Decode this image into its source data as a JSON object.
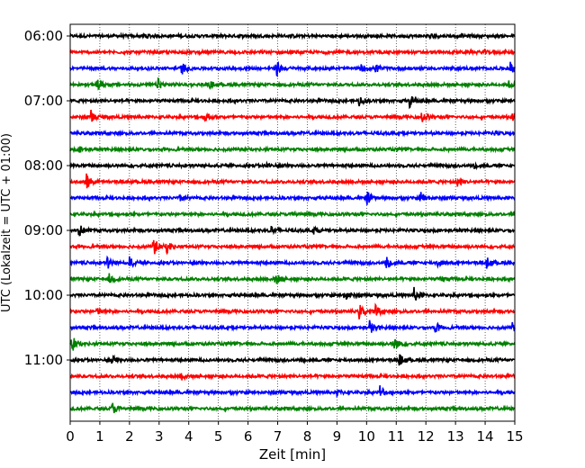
{
  "chart_data": {
    "type": "line",
    "subtype": "helicorder-seismogram",
    "title": "",
    "xlabel": "Zeit  [min]",
    "ylabel": "UTC (Lokalzeit = UTC + 01:00)",
    "xlim": [
      0,
      15
    ],
    "x_ticks": [
      "0",
      "1",
      "2",
      "3",
      "4",
      "5",
      "6",
      "7",
      "8",
      "9",
      "10",
      "11",
      "12",
      "13",
      "14",
      "15"
    ],
    "y_tick_labels": [
      "06:00",
      "07:00",
      "08:00",
      "09:00",
      "10:00",
      "11:00"
    ],
    "grid": "vertical-dotted",
    "line_interval_minutes": 15,
    "color_cycle": [
      "#000000",
      "#ff0000",
      "#0000ff",
      "#008000"
    ],
    "traces": [
      {
        "start": "06:00",
        "color": "#000000",
        "events": [
          {
            "min": 2.5,
            "amp": 0.25
          },
          {
            "min": 12.1,
            "amp": 0.2
          }
        ]
      },
      {
        "start": "06:15",
        "color": "#ff0000",
        "events": [
          {
            "min": 13.9,
            "amp": 0.2
          }
        ]
      },
      {
        "start": "06:30",
        "color": "#0000ff",
        "events": [
          {
            "min": 3.75,
            "amp": 0.5
          },
          {
            "min": 6.95,
            "amp": 0.7
          },
          {
            "min": 9.8,
            "amp": 0.3
          },
          {
            "min": 10.3,
            "amp": 0.35
          },
          {
            "min": 14.85,
            "amp": 0.45
          }
        ]
      },
      {
        "start": "06:45",
        "color": "#008000",
        "events": [
          {
            "min": 0.9,
            "amp": 0.55
          },
          {
            "min": 2.95,
            "amp": 0.5
          },
          {
            "min": 4.7,
            "amp": 0.3
          },
          {
            "min": 14.8,
            "amp": 0.25
          }
        ]
      },
      {
        "start": "07:00",
        "color": "#000000",
        "events": [
          {
            "min": 9.75,
            "amp": 0.45
          },
          {
            "min": 11.45,
            "amp": 0.5
          }
        ]
      },
      {
        "start": "07:15",
        "color": "#ff0000",
        "events": [
          {
            "min": 0.7,
            "amp": 0.5
          },
          {
            "min": 4.55,
            "amp": 0.5
          },
          {
            "min": 11.85,
            "amp": 0.55
          },
          {
            "min": 14.9,
            "amp": 0.4
          }
        ]
      },
      {
        "start": "07:30",
        "color": "#0000ff",
        "events": [
          {
            "min": 14.3,
            "amp": 0.15
          }
        ]
      },
      {
        "start": "07:45",
        "color": "#008000",
        "events": [
          {
            "min": 0.3,
            "amp": 0.2
          }
        ]
      },
      {
        "start": "08:00",
        "color": "#000000",
        "events": [
          {
            "min": 6.6,
            "amp": 0.25
          },
          {
            "min": 13.6,
            "amp": 0.2
          }
        ]
      },
      {
        "start": "08:15",
        "color": "#ff0000",
        "events": [
          {
            "min": 0.55,
            "amp": 0.65
          },
          {
            "min": 13.05,
            "amp": 0.35
          }
        ]
      },
      {
        "start": "08:30",
        "color": "#0000ff",
        "events": [
          {
            "min": 3.7,
            "amp": 0.3
          },
          {
            "min": 10.0,
            "amp": 0.55
          },
          {
            "min": 11.8,
            "amp": 0.65
          }
        ]
      },
      {
        "start": "08:45",
        "color": "#008000",
        "events": [
          {
            "min": 7.5,
            "amp": 0.25
          }
        ]
      },
      {
        "start": "09:00",
        "color": "#000000",
        "events": [
          {
            "min": 0.25,
            "amp": 0.75
          },
          {
            "min": 6.75,
            "amp": 0.45
          },
          {
            "min": 8.2,
            "amp": 0.35
          }
        ]
      },
      {
        "start": "09:15",
        "color": "#ff0000",
        "events": [
          {
            "min": 2.8,
            "amp": 0.85
          },
          {
            "min": 3.25,
            "amp": 0.5
          }
        ]
      },
      {
        "start": "09:30",
        "color": "#0000ff",
        "events": [
          {
            "min": 1.25,
            "amp": 0.55
          },
          {
            "min": 2.0,
            "amp": 0.45
          },
          {
            "min": 10.65,
            "amp": 0.6
          },
          {
            "min": 12.4,
            "amp": 0.3
          },
          {
            "min": 14.05,
            "amp": 0.45
          }
        ]
      },
      {
        "start": "09:45",
        "color": "#008000",
        "events": [
          {
            "min": 1.3,
            "amp": 0.45
          },
          {
            "min": 6.9,
            "amp": 0.6
          },
          {
            "min": 12.5,
            "amp": 0.25
          }
        ]
      },
      {
        "start": "10:00",
        "color": "#000000",
        "events": [
          {
            "min": 9.25,
            "amp": 0.5
          },
          {
            "min": 11.6,
            "amp": 0.6
          }
        ]
      },
      {
        "start": "10:15",
        "color": "#ff0000",
        "events": [
          {
            "min": 0.9,
            "amp": 0.3
          },
          {
            "min": 9.75,
            "amp": 0.6
          },
          {
            "min": 10.3,
            "amp": 0.55
          }
        ]
      },
      {
        "start": "10:30",
        "color": "#0000ff",
        "events": [
          {
            "min": 10.1,
            "amp": 0.6
          },
          {
            "min": 12.3,
            "amp": 0.45
          },
          {
            "min": 14.9,
            "amp": 0.4
          }
        ]
      },
      {
        "start": "10:45",
        "color": "#008000",
        "events": [
          {
            "min": 0.05,
            "amp": 0.75
          },
          {
            "min": 10.9,
            "amp": 0.75
          }
        ]
      },
      {
        "start": "11:00",
        "color": "#000000",
        "events": [
          {
            "min": 1.4,
            "amp": 0.4
          },
          {
            "min": 11.1,
            "amp": 0.5
          }
        ]
      },
      {
        "start": "11:15",
        "color": "#ff0000",
        "events": [
          {
            "min": 3.75,
            "amp": 0.3
          }
        ]
      },
      {
        "start": "11:30",
        "color": "#0000ff",
        "events": [
          {
            "min": 9.0,
            "amp": 0.25
          },
          {
            "min": 10.45,
            "amp": 0.6
          }
        ]
      },
      {
        "start": "11:45",
        "color": "#008000",
        "events": [
          {
            "min": 1.4,
            "amp": 0.6
          }
        ]
      }
    ]
  }
}
